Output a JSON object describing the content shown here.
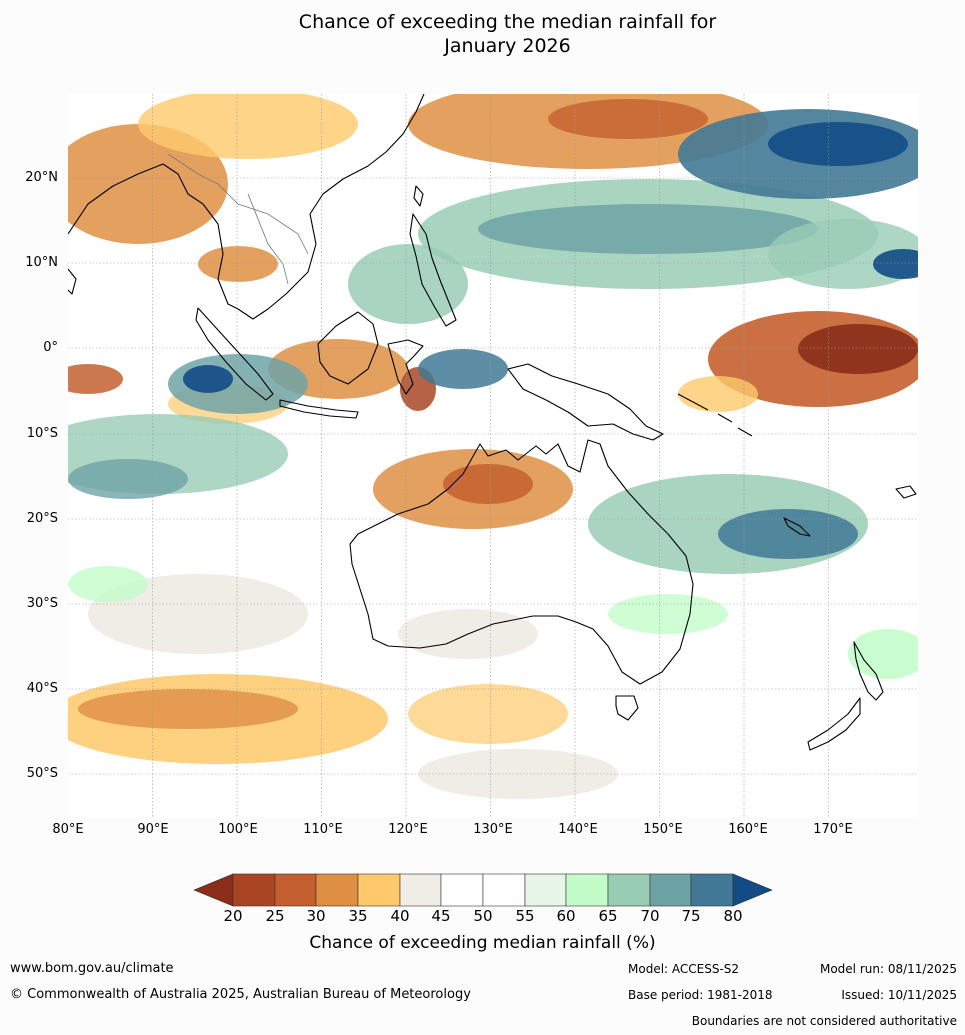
{
  "title_line1": "Chance of exceeding the median rainfall for",
  "title_line2": "January 2026",
  "lat_labels": [
    "20°N",
    "10°N",
    "0°",
    "10°S",
    "20°S",
    "30°S",
    "40°S",
    "50°S"
  ],
  "lon_labels": [
    "80°E",
    "90°E",
    "100°E",
    "110°E",
    "120°E",
    "130°E",
    "140°E",
    "150°E",
    "160°E",
    "170°E"
  ],
  "colorbar": {
    "ticks": [
      "20",
      "25",
      "30",
      "35",
      "40",
      "45",
      "50",
      "55",
      "60",
      "65",
      "70",
      "75",
      "80"
    ],
    "colors": [
      "#8b2d1a",
      "#a84624",
      "#c4602f",
      "#de8f43",
      "#fec96b",
      "#f0ece6",
      "#ffffff",
      "#ffffff",
      "#e8f6e8",
      "#c3fcc9",
      "#99ccb5",
      "#6ea3a6",
      "#427996",
      "#134b86"
    ],
    "label": "Chance of exceeding median rainfall (%)"
  },
  "footer": {
    "url": "www.bom.gov.au/climate",
    "copyright": "© Commonwealth of Australia 2025, Australian Bureau of Meteorology",
    "model": "Model: ACCESS-S2",
    "base_period": "Base period: 1981-2018",
    "model_run": "Model run: 08/11/2025",
    "issued": "Issued: 10/11/2025",
    "disclaimer": "Boundaries are not considered authoritative"
  }
}
